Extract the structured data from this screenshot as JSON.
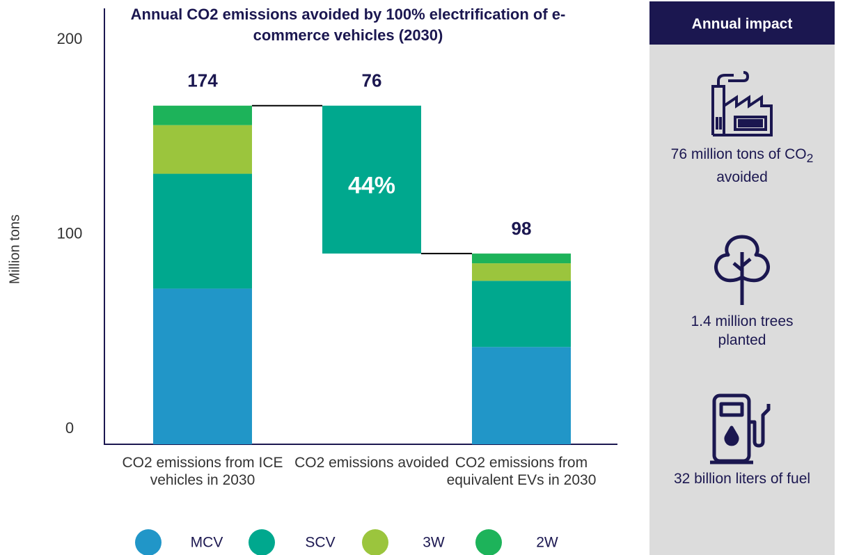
{
  "chart_data": {
    "type": "waterfall-stacked-bar",
    "title": "Annual CO2 emissions avoided by 100% electrification of e-commerce vehicles (2030)",
    "y_label": "Million tons",
    "categories": [
      "CO2 emissions from ICE vehicles in 2030",
      "CO2 emissions avoided",
      "CO2 emissions from equivalent EVs in 2030"
    ],
    "series": [
      {
        "name": "MCV",
        "color": "#2196c8",
        "values": [
          80,
          null,
          50
        ]
      },
      {
        "name": "SCV",
        "color": "#00a88e",
        "values": [
          59,
          null,
          34
        ]
      },
      {
        "name": "3W",
        "color": "#9bc53d",
        "values": [
          25,
          null,
          9
        ]
      },
      {
        "name": "2W",
        "color": "#1db35a",
        "values": [
          10,
          null,
          5
        ]
      }
    ],
    "avoided": {
      "color": "#00a88e",
      "values": [
        null,
        76,
        null
      ]
    },
    "totals": [
      174,
      76,
      98
    ],
    "annotation": "44%",
    "ylim": [
      0,
      224
    ],
    "yticks": [
      0,
      100,
      200
    ]
  },
  "panel": {
    "title": "Annual impact",
    "items": [
      {
        "parts": [
          "76 million tons of CO",
          "2",
          " avoided"
        ]
      },
      {
        "parts": [
          "1.4 million trees planted"
        ]
      },
      {
        "parts": [
          "32 billion liters of fuel"
        ]
      }
    ]
  }
}
